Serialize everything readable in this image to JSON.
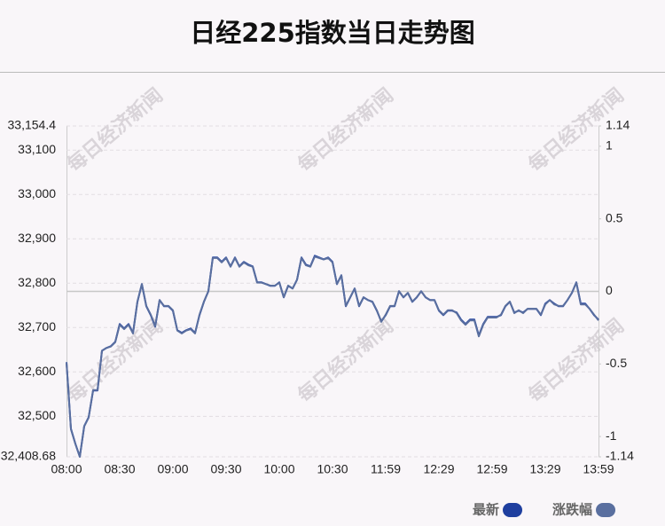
{
  "chart_data": {
    "type": "line",
    "title": "日经225指数当日走势图",
    "watermark": "每日经济新闻",
    "categories": [
      "08:00",
      null,
      null,
      null,
      null,
      null,
      null,
      null,
      null,
      null,
      null,
      null,
      "08:30",
      null,
      null,
      null,
      null,
      null,
      null,
      null,
      null,
      null,
      null,
      null,
      "09:00",
      null,
      null,
      null,
      null,
      null,
      null,
      null,
      null,
      null,
      null,
      null,
      "09:30",
      null,
      null,
      null,
      null,
      null,
      null,
      null,
      null,
      null,
      null,
      null,
      "10:00",
      null,
      null,
      null,
      null,
      null,
      null,
      null,
      null,
      null,
      null,
      null,
      "10:30",
      null,
      null,
      null,
      null,
      null,
      null,
      null,
      null,
      null,
      null,
      null,
      "11:59",
      null,
      null,
      null,
      null,
      null,
      null,
      null,
      null,
      null,
      null,
      null,
      "12:29",
      null,
      null,
      null,
      null,
      null,
      null,
      null,
      null,
      null,
      null,
      null,
      "12:59",
      null,
      null,
      null,
      null,
      null,
      null,
      null,
      null,
      null,
      null,
      null,
      "13:29",
      null,
      null,
      null,
      null,
      null,
      null,
      null,
      null,
      null,
      null,
      null,
      "13:59"
    ],
    "series": [
      {
        "name": "最新",
        "color": "#1f3f9f",
        "values": [
          32622,
          32472,
          32438,
          32409,
          32478,
          32498,
          32558,
          32558,
          32648,
          32654,
          32658,
          32668,
          32708,
          32698,
          32708,
          32688,
          32758,
          32798,
          32748,
          32728,
          32702,
          32762,
          32748,
          32748,
          32738,
          32694,
          32688,
          32694,
          32698,
          32688,
          32728,
          32758,
          32782,
          32858,
          32858,
          32848,
          32858,
          32838,
          32858,
          32838,
          32848,
          32842,
          32838,
          32802,
          32802,
          32798,
          32794,
          32794,
          32802,
          32768,
          32794,
          32788,
          32808,
          32858,
          32842,
          32838,
          32862,
          32858,
          32854,
          32858,
          32848,
          32798,
          32818,
          32748,
          32768,
          32788,
          32748,
          32768,
          32762,
          32758,
          32738,
          32714,
          32728,
          32748,
          32748,
          32782,
          32768,
          32778,
          32758,
          32768,
          32782,
          32768,
          32762,
          32762,
          32738,
          32728,
          32738,
          32738,
          32734,
          32718,
          32708,
          32718,
          32718,
          32682,
          32708,
          32724,
          32724,
          32724,
          32728,
          32748,
          32758,
          32734,
          32738,
          32734,
          32742,
          32742,
          32742,
          32728,
          32754,
          32762,
          32754,
          32748,
          32748,
          32762,
          32778,
          32802,
          32754,
          32754,
          32742,
          32728,
          32718
        ]
      },
      {
        "name": "涨跌幅",
        "color": "#5a6f9f",
        "axis": "y2",
        "values": [
          -0.49,
          -0.95,
          -1.05,
          -1.14,
          -0.93,
          -0.87,
          -0.68,
          -0.68,
          -0.41,
          -0.39,
          -0.38,
          -0.35,
          -0.23,
          -0.26,
          -0.23,
          -0.29,
          -0.07,
          0.05,
          -0.1,
          -0.16,
          -0.24,
          -0.06,
          -0.1,
          -0.1,
          -0.13,
          -0.27,
          -0.29,
          -0.27,
          -0.26,
          -0.29,
          -0.16,
          -0.07,
          0,
          0.23,
          0.23,
          0.2,
          0.23,
          0.17,
          0.23,
          0.17,
          0.2,
          0.18,
          0.17,
          0.06,
          0.06,
          0.05,
          0.04,
          0.04,
          0.06,
          -0.04,
          0.04,
          0.02,
          0.08,
          0.23,
          0.18,
          0.17,
          0.24,
          0.23,
          0.22,
          0.23,
          0.2,
          0.05,
          0.11,
          -0.1,
          -0.04,
          0.02,
          -0.1,
          -0.04,
          -0.06,
          -0.07,
          -0.13,
          -0.21,
          -0.16,
          -0.1,
          -0.1,
          0,
          -0.04,
          -0.01,
          -0.07,
          -0.04,
          0,
          -0.04,
          -0.06,
          -0.06,
          -0.13,
          -0.16,
          -0.13,
          -0.13,
          -0.15,
          -0.2,
          -0.23,
          -0.2,
          -0.2,
          -0.31,
          -0.23,
          -0.18,
          -0.18,
          -0.18,
          -0.16,
          -0.1,
          -0.07,
          -0.15,
          -0.13,
          -0.15,
          -0.12,
          -0.12,
          -0.12,
          -0.16,
          -0.09,
          -0.06,
          -0.09,
          -0.1,
          -0.1,
          -0.06,
          -0.01,
          0.06,
          -0.09,
          -0.09,
          -0.12,
          -0.16,
          -0.2
        ]
      }
    ],
    "ylim": [
      32408.68,
      33154.4
    ],
    "yticks": [
      {
        "value": 32408.68,
        "label": "32,408.68"
      },
      {
        "value": 32500,
        "label": "32,500"
      },
      {
        "value": 32600,
        "label": "32,600"
      },
      {
        "value": 32700,
        "label": "32,700"
      },
      {
        "value": 32800,
        "label": "32,800"
      },
      {
        "value": 32900,
        "label": "32,900"
      },
      {
        "value": 33000,
        "label": "33,000"
      },
      {
        "value": 33100,
        "label": "33,100"
      },
      {
        "value": 33154.4,
        "label": "33,154.4"
      }
    ],
    "y2lim": [
      -1.14,
      1.14
    ],
    "y2ticks": [
      -1.14,
      -1,
      -0.5,
      0,
      0.5,
      1,
      1.14
    ],
    "grid": true,
    "legend": "bottom-right"
  }
}
